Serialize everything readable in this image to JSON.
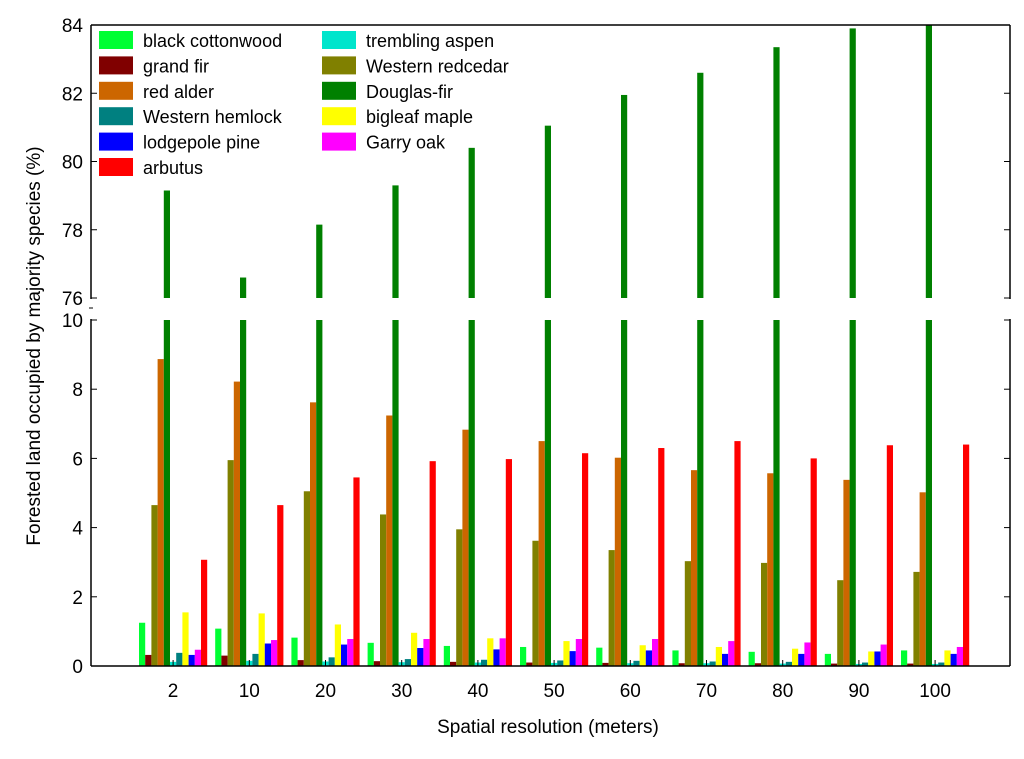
{
  "chart_data": {
    "type": "bar",
    "xlabel": "Spatial resolution (meters)",
    "ylabel": "Forested land occupied by majority species (%)",
    "categories": [
      "2",
      "10",
      "20",
      "30",
      "40",
      "50",
      "60",
      "70",
      "80",
      "90",
      "100"
    ],
    "axis_break": true,
    "ylim_lower": [
      0,
      10
    ],
    "ylim_upper": [
      76,
      84
    ],
    "yticks_lower": [
      "0",
      "2",
      "4",
      "6",
      "8",
      "10"
    ],
    "yticks_upper": [
      "76",
      "78",
      "80",
      "82",
      "84"
    ],
    "legend_position": "top-left",
    "grid": false,
    "series": [
      {
        "name": "black cottonwood",
        "color": "#00ff33",
        "values": [
          1.25,
          1.08,
          0.82,
          0.67,
          0.58,
          0.55,
          0.53,
          0.45,
          0.41,
          0.35,
          0.45
        ]
      },
      {
        "name": "grand fir",
        "color": "#800000",
        "values": [
          0.32,
          0.3,
          0.17,
          0.14,
          0.12,
          0.1,
          0.09,
          0.08,
          0.08,
          0.07,
          0.07
        ]
      },
      {
        "name": "Western redcedar",
        "color": "#808000",
        "values": [
          4.65,
          5.95,
          5.05,
          4.38,
          3.95,
          3.62,
          3.35,
          3.03,
          2.98,
          2.48,
          2.72
        ]
      },
      {
        "name": "red alder",
        "color": "#cc6600",
        "values": [
          8.87,
          8.22,
          7.62,
          7.24,
          6.83,
          6.5,
          6.02,
          5.66,
          5.57,
          5.38,
          5.02
        ]
      },
      {
        "name": "Douglas-fir",
        "color": "#008000",
        "values": [
          79.15,
          76.6,
          78.15,
          79.3,
          80.4,
          81.05,
          81.95,
          82.6,
          83.35,
          83.9,
          84.0
        ]
      },
      {
        "name": "trembling aspen",
        "color": "#00e5cc",
        "values": [
          0.12,
          0.15,
          0.13,
          0.11,
          0.1,
          0.09,
          0.08,
          0.08,
          0.07,
          0.06,
          0.06
        ]
      },
      {
        "name": "Western hemlock",
        "color": "#008080",
        "values": [
          0.38,
          0.35,
          0.25,
          0.2,
          0.18,
          0.16,
          0.15,
          0.13,
          0.12,
          0.1,
          0.1
        ]
      },
      {
        "name": "bigleaf maple",
        "color": "#ffff00",
        "values": [
          1.55,
          1.52,
          1.2,
          0.96,
          0.8,
          0.72,
          0.6,
          0.55,
          0.5,
          0.42,
          0.45
        ]
      },
      {
        "name": "lodgepole pine",
        "color": "#0000ff",
        "values": [
          0.32,
          0.65,
          0.62,
          0.52,
          0.48,
          0.43,
          0.45,
          0.35,
          0.35,
          0.42,
          0.35
        ]
      },
      {
        "name": "Garry oak",
        "color": "#ff00ff",
        "values": [
          0.47,
          0.75,
          0.78,
          0.78,
          0.8,
          0.78,
          0.78,
          0.72,
          0.68,
          0.62,
          0.55
        ]
      },
      {
        "name": "arbutus",
        "color": "#ff0000",
        "values": [
          3.07,
          4.65,
          5.45,
          5.92,
          5.98,
          6.15,
          6.3,
          6.5,
          6.0,
          6.38,
          6.4
        ]
      }
    ],
    "legend_order": [
      "black cottonwood",
      "trembling aspen",
      "grand fir",
      "Western redcedar",
      "red alder",
      "Douglas-fir",
      "Western hemlock",
      "bigleaf maple",
      "lodgepole pine",
      "Garry oak",
      "arbutus"
    ]
  }
}
